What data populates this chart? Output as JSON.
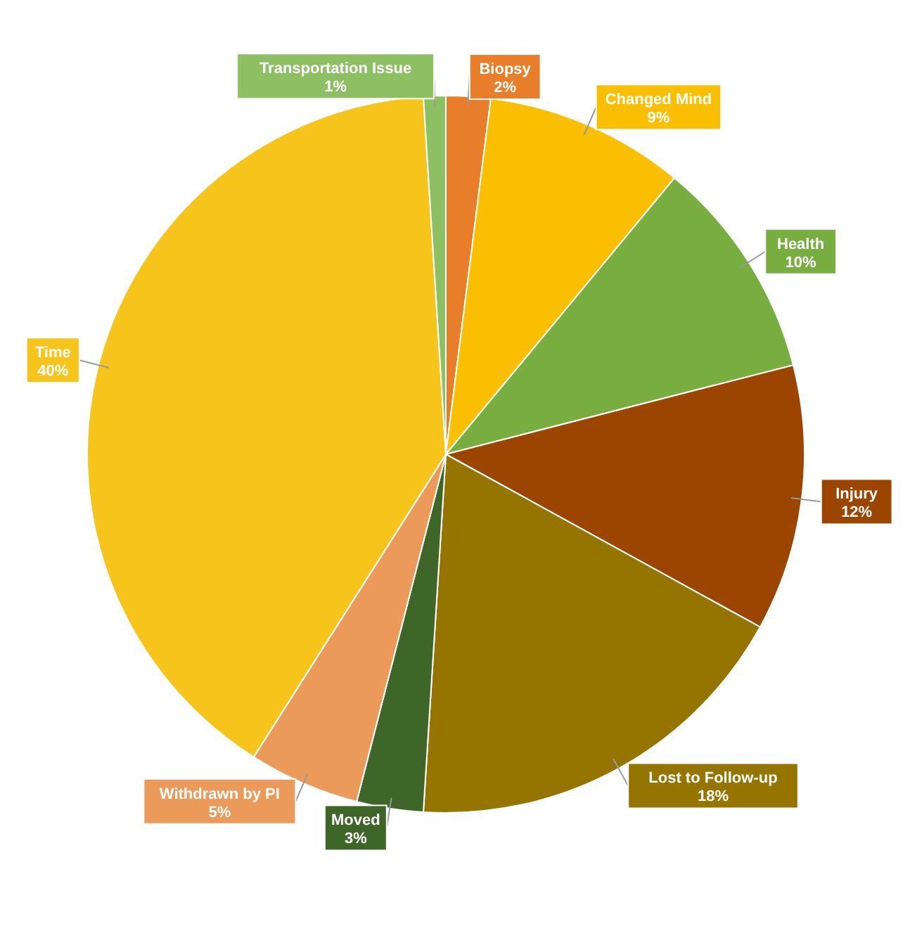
{
  "chart_data": {
    "type": "pie",
    "categories": [
      "Biopsy",
      "Changed Mind",
      "Health",
      "Injury",
      "Lost to Follow-up",
      "Moved",
      "Withdrawn by PI",
      "Time",
      "Transportation Issue"
    ],
    "values": [
      2,
      9,
      10,
      12,
      18,
      3,
      5,
      40,
      1
    ],
    "value_labels": [
      "2%",
      "9%",
      "10%",
      "12%",
      "18%",
      "3%",
      "5%",
      "40%",
      "1%"
    ],
    "colors": [
      "#e87d2a",
      "#f9bf00",
      "#78ad3f",
      "#9c4500",
      "#957500",
      "#3e6628",
      "#ec9a5a",
      "#f7c41c",
      "#8cc063"
    ],
    "legend": false
  }
}
